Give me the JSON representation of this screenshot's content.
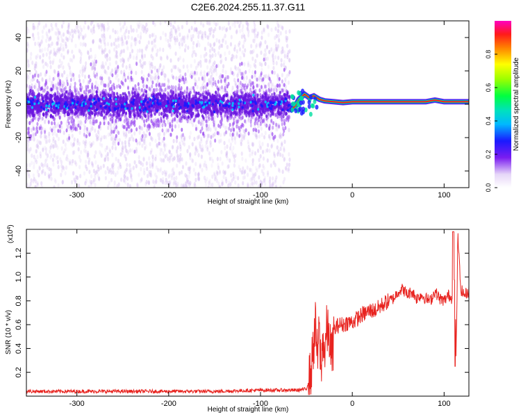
{
  "title": "C2E6.2024.255.11.37.G11",
  "colors": {
    "spec_low": "#cfb3f0",
    "spec_mid": "#6a16e0",
    "signal": "#ff1a1a",
    "snr_line": "#e8231f"
  },
  "chart_data": [
    {
      "type": "heatmap",
      "xlabel": "Height of straight line (km)",
      "ylabel": "Frequency (Hz)",
      "xlim": [
        -355,
        127
      ],
      "ylim": [
        -50,
        50
      ],
      "x_ticks": [
        -300,
        -200,
        -100,
        0,
        100
      ],
      "y_ticks": [
        -40,
        -20,
        0,
        20,
        40
      ],
      "colorbar": {
        "label": "Normalized spectral amplitude",
        "range": [
          0,
          1
        ],
        "ticks": [
          "0.0",
          "0.2",
          "0.4",
          "0.6",
          "0.8"
        ]
      },
      "regions": [
        {
          "x_range": [
            -355,
            -68
          ],
          "description_values": {
            "core_halfwidth_hz": 7,
            "noise_extent_hz": 50
          }
        },
        {
          "x_range": [
            -68,
            -40
          ],
          "peak_freq_hz": [
            -5,
            5
          ]
        },
        {
          "x_range": [
            -40,
            127
          ],
          "peak_freq_hz": 1.5
        }
      ],
      "signal_freq_line": {
        "x": [
          -68,
          -62,
          -58,
          -52,
          -47,
          -42,
          -36,
          -30,
          -20,
          -10,
          0,
          20,
          40,
          60,
          80,
          90,
          100,
          110,
          127
        ],
        "y": [
          -4,
          -1,
          3,
          6,
          4,
          5,
          3,
          2,
          1.5,
          1,
          1.5,
          1.5,
          1.5,
          1.5,
          1.5,
          2.5,
          1.5,
          1.5,
          1.5
        ]
      }
    },
    {
      "type": "line",
      "xlabel": "Height of straight line (km)",
      "ylabel": "SNR (10 * v/v)",
      "y_multiplier_label": "(x10",
      "y_multiplier_exp": "4",
      "y_multiplier_close": ")",
      "xlim": [
        -355,
        127
      ],
      "ylim": [
        0,
        1.4
      ],
      "x_ticks": [
        -300,
        -200,
        -100,
        0,
        100
      ],
      "y_ticks": [
        "0.2",
        "0.4",
        "0.6",
        "0.8",
        "1.0",
        "1.2"
      ],
      "series": [
        {
          "x": [
            -355,
            -300,
            -250,
            -200,
            -150,
            -100,
            -60,
            -50,
            -45,
            -42,
            -40,
            -38,
            -36,
            -34,
            -32,
            -30,
            -28,
            -25,
            -22,
            -20,
            -15,
            -10,
            -5,
            0,
            5,
            10,
            15,
            20,
            25,
            30,
            35,
            40,
            45,
            50,
            55,
            60,
            65,
            70,
            75,
            80,
            85,
            90,
            95,
            100,
            105,
            108,
            110,
            112,
            113,
            115,
            118,
            122,
            127
          ],
          "y": [
            0.04,
            0.04,
            0.04,
            0.04,
            0.04,
            0.05,
            0.05,
            0.06,
            0.2,
            0.45,
            0.6,
            0.3,
            0.55,
            0.2,
            0.5,
            0.35,
            0.55,
            0.5,
            0.3,
            0.55,
            0.6,
            0.6,
            0.62,
            0.62,
            0.65,
            0.68,
            0.7,
            0.72,
            0.72,
            0.75,
            0.78,
            0.8,
            0.82,
            0.88,
            0.9,
            0.85,
            0.88,
            0.82,
            0.85,
            0.82,
            0.8,
            0.88,
            0.82,
            0.8,
            0.85,
            0.82,
            0.9,
            1.0,
            0.3,
            1.35,
            0.9,
            0.85,
            0.88
          ]
        }
      ]
    }
  ]
}
